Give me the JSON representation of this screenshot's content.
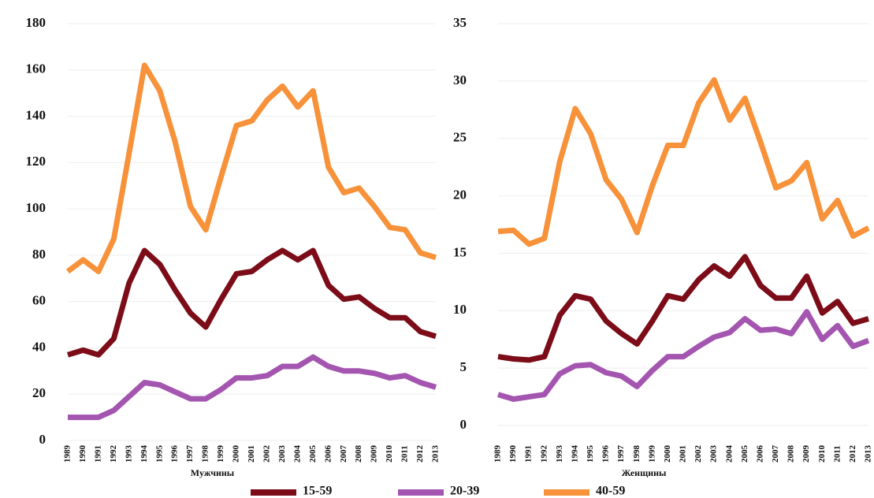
{
  "chart_data": [
    {
      "type": "line",
      "title": "Мужчины",
      "categories": [
        "1989",
        "1990",
        "1991",
        "1992",
        "1993",
        "1994",
        "1995",
        "1996",
        "1997",
        "1998",
        "1999",
        "2000",
        "2001",
        "2002",
        "2003",
        "2004",
        "2005",
        "2006",
        "2007",
        "2008",
        "2009",
        "2010",
        "2011",
        "2012",
        "2013"
      ],
      "ylim": [
        0,
        180
      ],
      "yticks": [
        0,
        20,
        40,
        60,
        80,
        100,
        120,
        140,
        160,
        180
      ],
      "grid": true,
      "legend": "bottom",
      "series": [
        {
          "name": "15-59",
          "color": "#7b0c18",
          "values": [
            37,
            39,
            37,
            44,
            68,
            82,
            76,
            65,
            55,
            49,
            61,
            72,
            73,
            78,
            82,
            78,
            82,
            67,
            61,
            62,
            57,
            53,
            53,
            47,
            45
          ]
        },
        {
          "name": "20-39",
          "color": "#a355b0",
          "values": [
            10,
            10,
            10,
            13,
            19,
            25,
            24,
            21,
            18,
            18,
            22,
            27,
            27,
            28,
            32,
            32,
            36,
            32,
            30,
            30,
            29,
            27,
            28,
            25,
            23
          ]
        },
        {
          "name": "40-59",
          "color": "#f7923a",
          "values": [
            73,
            78,
            73,
            87,
            124,
            162,
            151,
            129,
            101,
            91,
            114,
            136,
            138,
            147,
            153,
            144,
            151,
            118,
            107,
            109,
            101,
            92,
            91,
            81,
            79
          ]
        }
      ]
    },
    {
      "type": "line",
      "title": "Женщины",
      "categories": [
        "1989",
        "1990",
        "1991",
        "1992",
        "1993",
        "1994",
        "1995",
        "1996",
        "1997",
        "1998",
        "1999",
        "2000",
        "2001",
        "2002",
        "2003",
        "2004",
        "2005",
        "2006",
        "2007",
        "2008",
        "2009",
        "2010",
        "2011",
        "2012",
        "2013"
      ],
      "ylim": [
        0,
        35
      ],
      "yticks": [
        0,
        5,
        10,
        15,
        20,
        25,
        30,
        35
      ],
      "grid": true,
      "series": [
        {
          "name": "15-59",
          "color": "#7b0c18",
          "values": [
            6.0,
            5.8,
            5.7,
            6.0,
            9.6,
            11.3,
            11.0,
            9.1,
            8.0,
            7.1,
            9.1,
            11.3,
            11.0,
            12.7,
            13.9,
            13.0,
            14.7,
            12.2,
            11.1,
            11.1,
            13.0,
            9.8,
            10.8,
            8.9,
            9.3
          ]
        },
        {
          "name": "20-39",
          "color": "#a355b0",
          "values": [
            2.7,
            2.3,
            2.5,
            2.7,
            4.5,
            5.2,
            5.3,
            4.6,
            4.3,
            3.4,
            4.8,
            6.0,
            6.0,
            6.9,
            7.7,
            8.1,
            9.3,
            8.3,
            8.4,
            8.0,
            9.9,
            7.5,
            8.7,
            6.9,
            7.4
          ]
        },
        {
          "name": "40-59",
          "color": "#f7923a",
          "values": [
            16.9,
            17.0,
            15.8,
            16.3,
            23.0,
            27.6,
            25.4,
            21.4,
            19.7,
            16.8,
            20.9,
            24.4,
            24.4,
            28.1,
            30.1,
            26.6,
            28.5,
            24.7,
            20.7,
            21.3,
            22.9,
            18.0,
            19.6,
            16.5,
            17.2
          ]
        }
      ]
    }
  ]
}
